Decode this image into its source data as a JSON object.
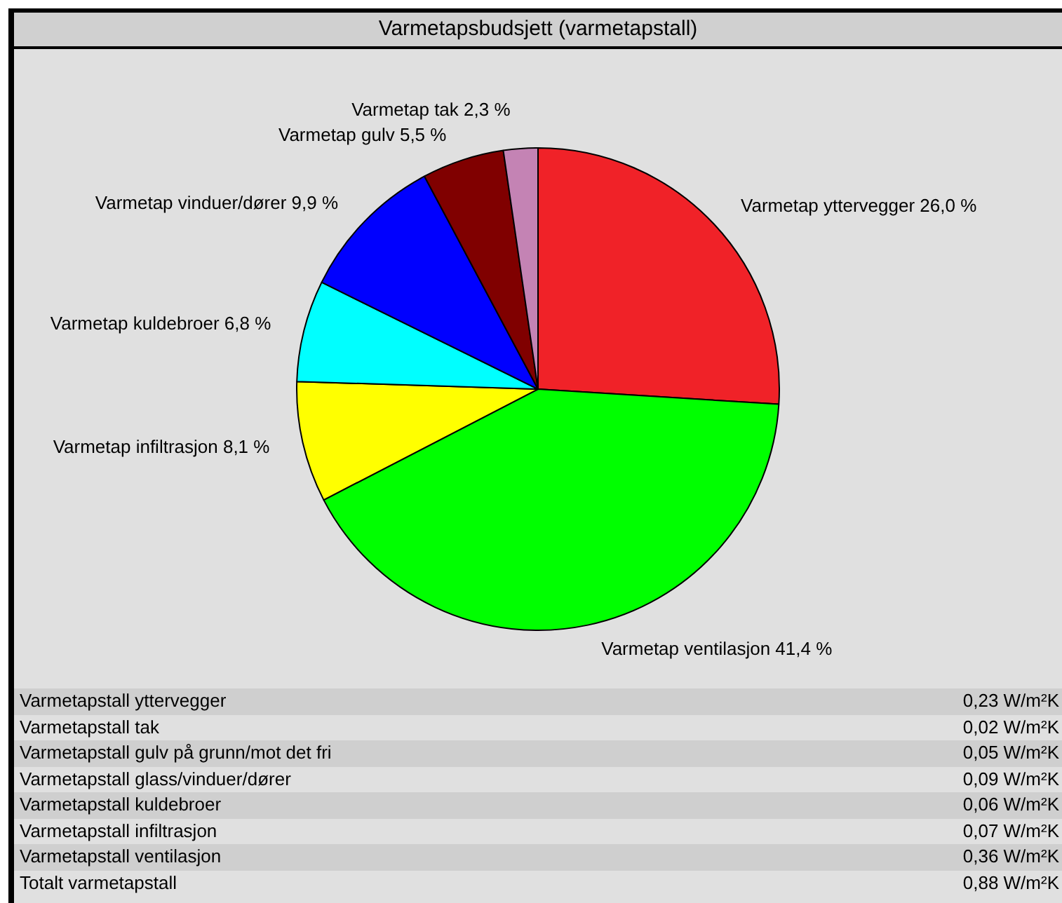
{
  "chart_data": {
    "type": "pie",
    "title": "Varmetapsbudsjett (varmetapstall)",
    "categories": [
      "Varmetap yttervegger",
      "Varmetap ventilasjon",
      "Varmetap infiltrasjon",
      "Varmetap kuldebroer",
      "Varmetap vinduer/dører",
      "Varmetap gulv",
      "Varmetap tak"
    ],
    "values": [
      26.0,
      41.4,
      8.1,
      6.8,
      9.9,
      5.5,
      2.3
    ],
    "value_labels": [
      "26,0 %",
      "41,4 %",
      "8,1 %",
      "6,8 %",
      "9,9 %",
      "5,5 %",
      "2,3 %"
    ],
    "colors": [
      "#f02228",
      "#00ff00",
      "#ffff00",
      "#00ffff",
      "#0000ff",
      "#800000",
      "#c483b4"
    ],
    "legend": false,
    "annotations": [
      "Varmetapstall yttervegger",
      "0,23 W/m²K",
      "Varmetapstall tak",
      "0,02 W/m²K",
      "Varmetapstall gulv på grunn/mot det fri",
      "0,05 W/m²K",
      "Varmetapstall glass/vinduer/dører",
      "0,09 W/m²K",
      "Varmetapstall kuldebroer",
      "0,06 W/m²K",
      "Varmetapstall infiltrasjon",
      "0,07 W/m²K",
      "Varmetapstall ventilasjon",
      "0,36 W/m²K",
      "Totalt varmetapstall",
      "0,88 W/m²K"
    ]
  }
}
